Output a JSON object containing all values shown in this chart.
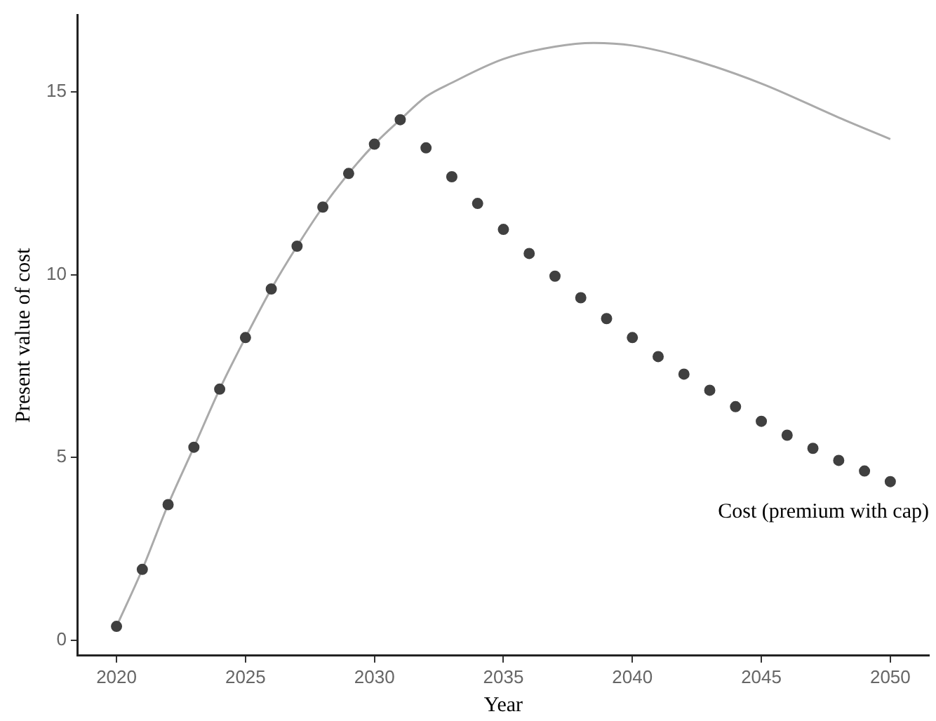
{
  "chart_data": {
    "type": "line",
    "xlabel": "Year",
    "ylabel": "Present value of cost",
    "xlim": [
      2018.5,
      2051.5
    ],
    "ylim": [
      -0.42,
      17.1
    ],
    "xticks": [
      2020,
      2025,
      2030,
      2035,
      2040,
      2045,
      2050
    ],
    "yticks": [
      0,
      5,
      10,
      15
    ],
    "grid": false,
    "legend": false,
    "series": [
      {
        "color": "#aaaaaa",
        "marker": "none",
        "line_style": "solid",
        "x": [
          2020,
          2021,
          2022,
          2023,
          2024,
          2025,
          2026,
          2027,
          2028,
          2029,
          2030,
          2031,
          2032,
          2033,
          2035,
          2037,
          2038.5,
          2040,
          2042,
          2045,
          2048,
          2050
        ],
        "values": [
          0.38,
          1.94,
          3.71,
          5.28,
          6.87,
          8.28,
          9.61,
          10.78,
          11.85,
          12.77,
          13.57,
          14.24,
          14.87,
          15.25,
          15.9,
          16.24,
          16.34,
          16.27,
          15.95,
          15.23,
          14.3,
          13.71
        ]
      },
      {
        "type": "scatter",
        "name": "Cost (premium with cap)",
        "color": "#404040",
        "marker": "circle",
        "x": [
          2020,
          2021,
          2022,
          2023,
          2024,
          2025,
          2026,
          2027,
          2028,
          2029,
          2030,
          2031,
          2032,
          2033,
          2034,
          2035,
          2036,
          2037,
          2038,
          2039,
          2040,
          2041,
          2042,
          2043,
          2044,
          2045,
          2046,
          2047,
          2048,
          2049,
          2050
        ],
        "values": [
          0.38,
          1.94,
          3.71,
          5.28,
          6.87,
          8.28,
          9.61,
          10.78,
          11.85,
          12.77,
          13.57,
          14.24,
          13.47,
          12.68,
          11.95,
          11.24,
          10.58,
          9.96,
          9.37,
          8.8,
          8.28,
          7.76,
          7.28,
          6.84,
          6.39,
          5.99,
          5.61,
          5.25,
          4.92,
          4.63,
          4.34
        ]
      }
    ]
  }
}
